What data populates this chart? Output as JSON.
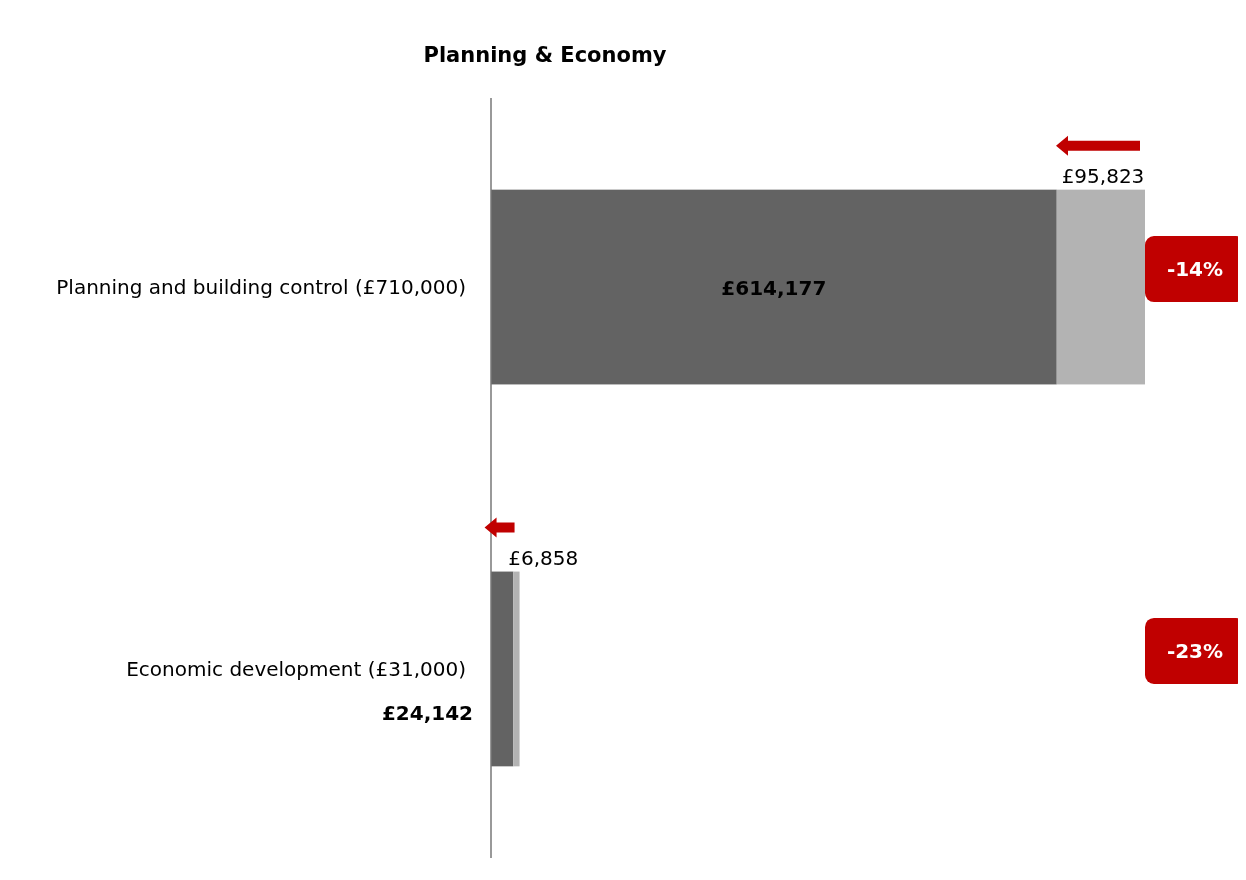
{
  "chart_data": {
    "type": "bar",
    "orientation": "horizontal",
    "stacked": true,
    "title": "Planning & Economy",
    "categories": [
      "Planning and building control (£710,000)",
      "Economic development (£31,000)"
    ],
    "series": [
      {
        "color": "#636363",
        "values": [
          614177,
          24142
        ],
        "value_labels": [
          "£614,177",
          "£24,142"
        ]
      },
      {
        "color": "#b3b3b3",
        "values": [
          95823,
          6858
        ],
        "value_labels": [
          "£95,823",
          "£6,858"
        ]
      }
    ],
    "annotations": [
      "-14%",
      "-23%"
    ]
  }
}
